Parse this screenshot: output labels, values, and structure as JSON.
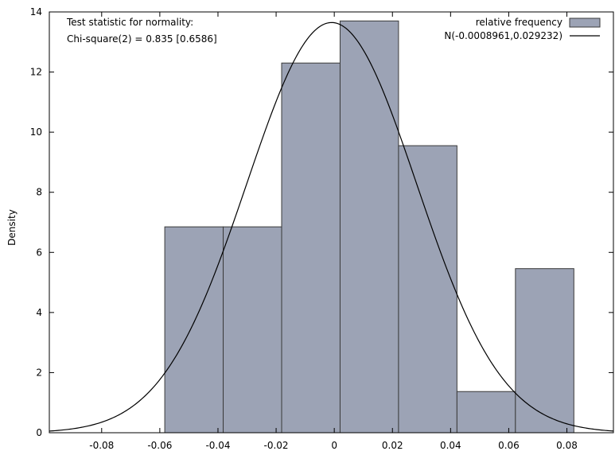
{
  "chart_data": {
    "type": "bar",
    "title": "",
    "xlabel": "",
    "ylabel": "Density",
    "xlim": [
      -0.098,
      0.096
    ],
    "ylim": [
      0,
      14
    ],
    "x_ticks": [
      -0.08,
      -0.06,
      -0.04,
      -0.02,
      0,
      0.02,
      0.04,
      0.06,
      0.08
    ],
    "x_tick_labels": [
      "-0.08",
      "-0.06",
      "-0.04",
      "-0.02",
      "0",
      "0.02",
      "0.04",
      "0.06",
      "0.08"
    ],
    "y_ticks": [
      0,
      2,
      4,
      6,
      8,
      10,
      12,
      14
    ],
    "y_tick_labels": [
      "0",
      "2",
      "4",
      "6",
      "8",
      "10",
      "12",
      "14"
    ],
    "grid": false,
    "annotation": {
      "line1": "Test statistic for normality:",
      "line2": "Chi-square(2) = 0.835 [0.6586]"
    },
    "legend": {
      "placement": "top-right",
      "entries": [
        {
          "label": "relative frequency",
          "kind": "bar"
        },
        {
          "label": "N(-0.0008961,0.029232)",
          "kind": "line"
        }
      ]
    },
    "series": [
      {
        "name": "relative frequency",
        "type": "histogram",
        "color": "#9ca3b5",
        "edge_color": "#3a3a3a",
        "bins": [
          {
            "x0": -0.0583,
            "x1": -0.0382,
            "value": 6.85
          },
          {
            "x0": -0.0382,
            "x1": -0.0181,
            "value": 6.85
          },
          {
            "x0": -0.0181,
            "x1": 0.002,
            "value": 12.3
          },
          {
            "x0": 0.002,
            "x1": 0.0221,
            "value": 13.7
          },
          {
            "x0": 0.0221,
            "x1": 0.0422,
            "value": 9.55
          },
          {
            "x0": 0.0422,
            "x1": 0.0623,
            "value": 1.37
          },
          {
            "x0": 0.0623,
            "x1": 0.0824,
            "value": 5.46
          }
        ]
      },
      {
        "name": "N(-0.0008961,0.029232)",
        "type": "line",
        "color": "#000000",
        "mean": -0.0008961,
        "sd": 0.029232
      }
    ]
  }
}
